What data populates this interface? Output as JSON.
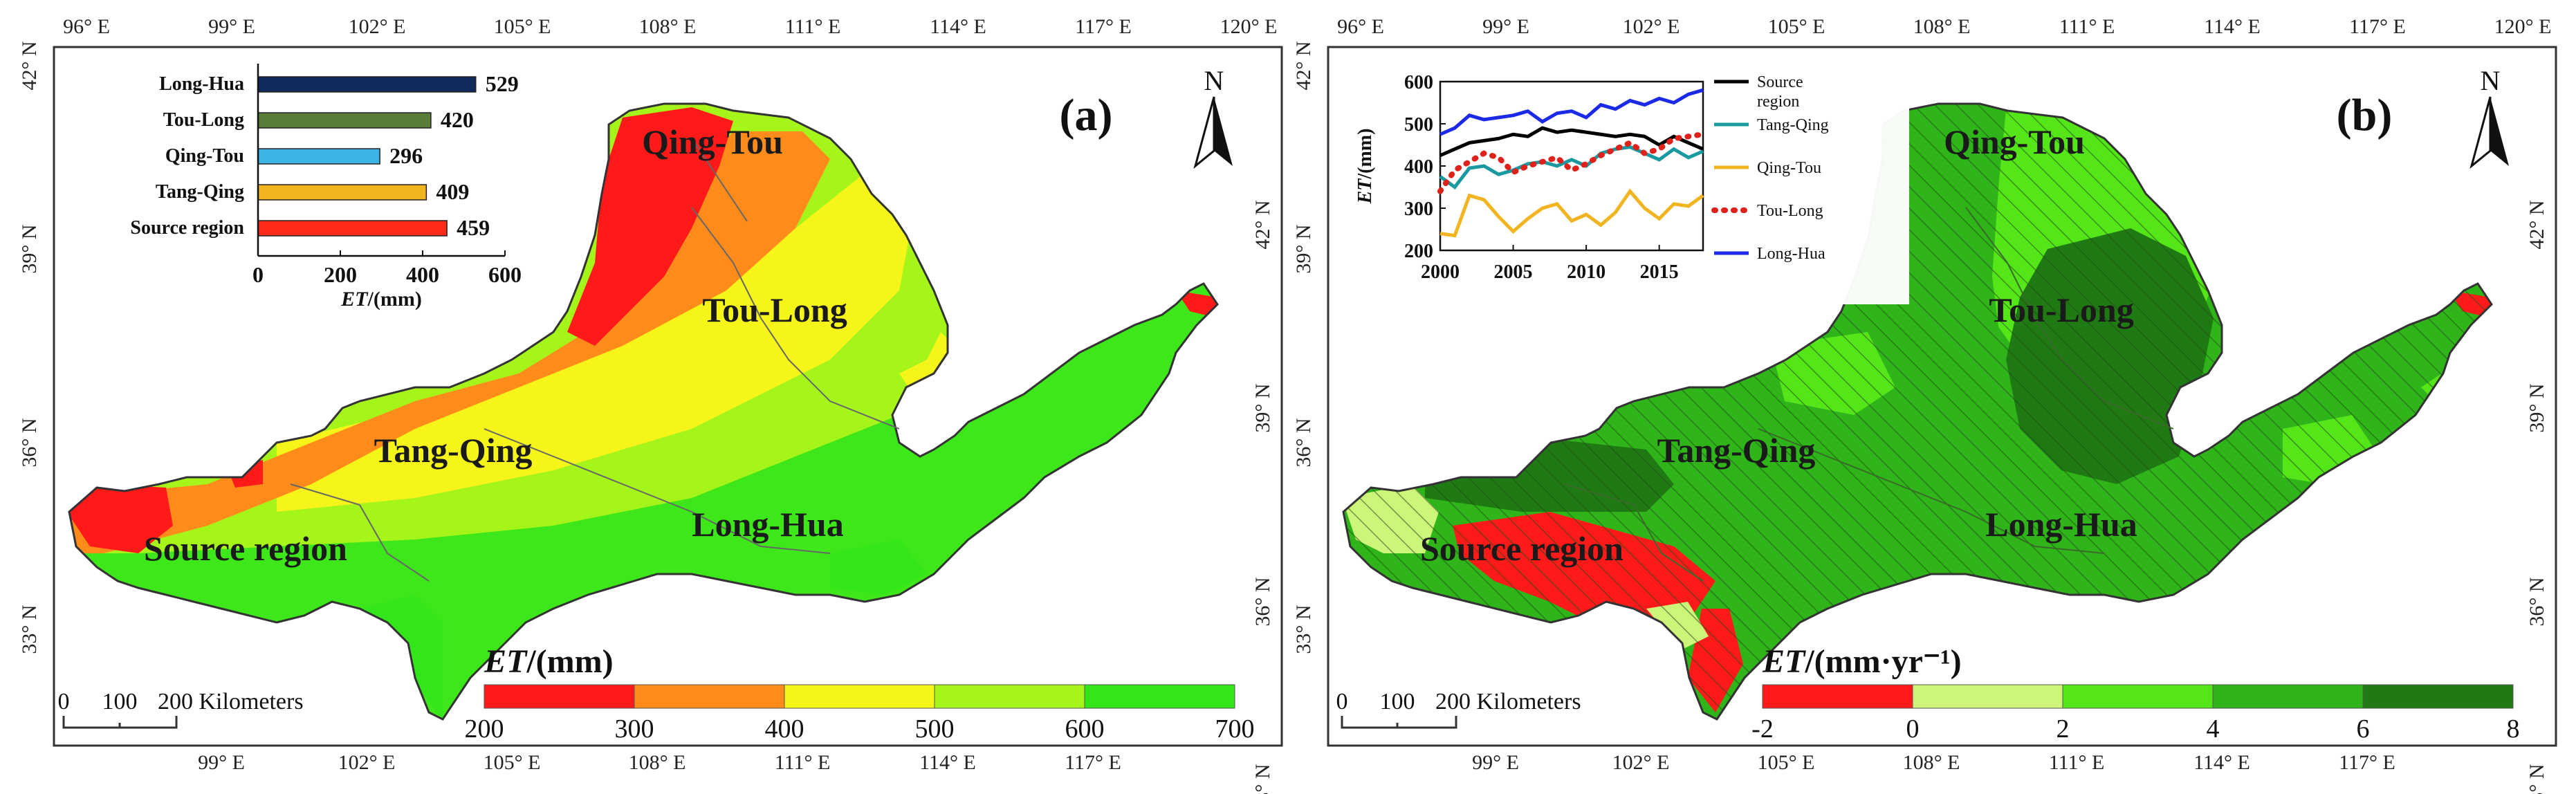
{
  "panel_a": {
    "label": "(a)",
    "north": "N",
    "top_lon": [
      "96° E",
      "99° E",
      "102° E",
      "105° E",
      "108° E",
      "111° E",
      "114° E",
      "117° E",
      "120° E"
    ],
    "bottom_lon": [
      "99° E",
      "102° E",
      "105° E",
      "108° E",
      "111° E",
      "114° E",
      "117° E"
    ],
    "lat": [
      "42° N",
      "39° N",
      "36° N",
      "33° N"
    ],
    "regions": [
      "Qing-Tou",
      "Tou-Long",
      "Tang-Qing",
      "Long-Hua",
      "Source region"
    ],
    "legend": {
      "title_italic": "ET",
      "title_rest": "/(mm)",
      "ticks": [
        "200",
        "300",
        "400",
        "500",
        "600",
        "700"
      ],
      "colors": [
        "#ff1a1a",
        "#ff8c1a",
        "#f5f51a",
        "#a6f51a",
        "#33e61a"
      ]
    },
    "scale": {
      "zero": "0",
      "mid": "100",
      "label": "200 Kilometers"
    },
    "chart_data": {
      "type": "bar",
      "orientation": "horizontal",
      "categories": [
        "Long-Hua",
        "Tou-Long",
        "Qing-Tou",
        "Tang-Qing",
        "Source region"
      ],
      "values": [
        529,
        420,
        296,
        409,
        459
      ],
      "colors": [
        "#0f2a5c",
        "#5a7d3a",
        "#3cb4e6",
        "#f2b522",
        "#ff2a1a"
      ],
      "xlabel_italic": "ET",
      "xlabel_rest": "/(mm)",
      "xlim": [
        0,
        600
      ],
      "xticks": [
        "0",
        "200",
        "400",
        "600"
      ]
    }
  },
  "panel_b": {
    "label": "(b)",
    "north": "N",
    "top_lon": [
      "96° E",
      "99° E",
      "102° E",
      "105° E",
      "108° E",
      "111° E",
      "114° E",
      "117° E",
      "120° E"
    ],
    "bottom_lon": [
      "99° E",
      "102° E",
      "105° E",
      "108° E",
      "111° E",
      "114° E",
      "117° E"
    ],
    "lat": [
      "42° N",
      "39° N",
      "36° N",
      "33° N"
    ],
    "regions": [
      "Qing-Tou",
      "Tou-Long",
      "Tang-Qing",
      "Long-Hua",
      "Source region"
    ],
    "legend": {
      "title_italic": "ET",
      "title_rest": "/(mm·yr⁻¹)",
      "ticks": [
        "-2",
        "0",
        "2",
        "4",
        "6",
        "8"
      ],
      "colors": [
        "#ff1a1a",
        "#ccf57a",
        "#55e61a",
        "#2fb51a",
        "#1f7a14"
      ]
    },
    "scale": {
      "zero": "0",
      "mid": "100",
      "label": "200 Kilometers"
    },
    "chart_data": {
      "type": "line",
      "x": [
        2000,
        2001,
        2002,
        2003,
        2004,
        2005,
        2006,
        2007,
        2008,
        2009,
        2010,
        2011,
        2012,
        2013,
        2014,
        2015,
        2016,
        2017,
        2018
      ],
      "ylim": [
        200,
        600
      ],
      "xticks": [
        "2000",
        "2005",
        "2010",
        "2015"
      ],
      "yticks": [
        "200",
        "300",
        "400",
        "500",
        "600"
      ],
      "ylabel_italic": "ET",
      "ylabel_rest": "/(mm)",
      "series": [
        {
          "name": "Source region",
          "color": "#000000",
          "style": "solid",
          "values": [
            425,
            440,
            455,
            460,
            465,
            475,
            470,
            490,
            480,
            485,
            480,
            475,
            470,
            475,
            470,
            450,
            470,
            455,
            440
          ]
        },
        {
          "name": "Tang-Qing",
          "color": "#1a9aa0",
          "style": "solid",
          "values": [
            375,
            350,
            395,
            400,
            380,
            390,
            405,
            410,
            400,
            415,
            400,
            430,
            440,
            445,
            430,
            415,
            440,
            420,
            435
          ]
        },
        {
          "name": "Qing-Tou",
          "color": "#f2b522",
          "style": "solid",
          "values": [
            240,
            235,
            330,
            320,
            280,
            245,
            275,
            300,
            310,
            270,
            285,
            260,
            290,
            340,
            300,
            275,
            310,
            305,
            330
          ]
        },
        {
          "name": "Tou-Long",
          "color": "#e0201a",
          "style": "dotted",
          "values": [
            340,
            390,
            410,
            430,
            420,
            385,
            400,
            410,
            420,
            390,
            405,
            425,
            440,
            455,
            430,
            440,
            465,
            470,
            475
          ]
        },
        {
          "name": "Long-Hua",
          "color": "#1a2ae6",
          "style": "solid",
          "values": [
            475,
            490,
            520,
            510,
            515,
            520,
            530,
            505,
            525,
            530,
            515,
            545,
            535,
            555,
            545,
            560,
            550,
            570,
            580
          ]
        }
      ]
    }
  }
}
